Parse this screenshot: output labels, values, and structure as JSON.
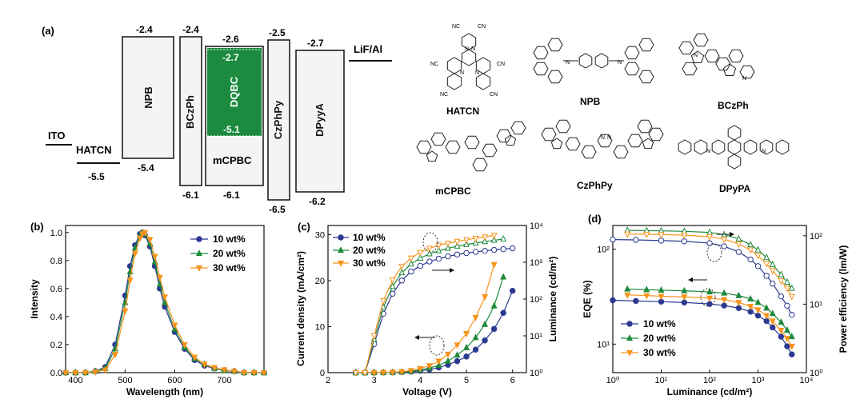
{
  "colors": {
    "blue": "#2b3990",
    "green": "#1e8a3c",
    "orange": "#f7941d",
    "band_fill": "#f4f4f4",
    "dqbc": "#1d8b3f"
  },
  "panel_a": {
    "label": "(a)",
    "layers": [
      {
        "name": "ITO",
        "lumo": "",
        "homo": "",
        "type": "line"
      },
      {
        "name": "HATCN",
        "lumo": "",
        "homo": "-5.5",
        "type": "line"
      },
      {
        "name": "NPB",
        "lumo": "-2.4",
        "homo": "-5.4",
        "type": "box"
      },
      {
        "name": "BCzPh",
        "lumo": "-2.4",
        "homo": "-6.1",
        "type": "box"
      },
      {
        "name": "mCPBC",
        "lumo": "-2.6",
        "homo": "-6.1",
        "type": "box"
      },
      {
        "name": "DQBC",
        "lumo": "-2.7",
        "homo": "-5.1",
        "type": "dopant"
      },
      {
        "name": "CzPhPy",
        "lumo": "-2.5",
        "homo": "-6.5",
        "type": "box"
      },
      {
        "name": "DPyyA",
        "lumo": "-2.7",
        "homo": "-6.2",
        "type": "box"
      },
      {
        "name": "LiF/Al",
        "lumo": "",
        "homo": "",
        "type": "line"
      }
    ],
    "structures": [
      "HATCN",
      "NPB",
      "BCzPh",
      "mCPBC",
      "CzPhPy",
      "DPyPA"
    ],
    "hatcn_atoms": [
      "NC",
      "CN",
      "N",
      "N",
      "NC",
      "CN",
      "N",
      "N",
      "NC",
      "CN"
    ]
  },
  "chart_data": [
    {
      "panel": "(b)",
      "type": "line",
      "xlabel": "Wavelength (nm)",
      "ylabel": "Intensity",
      "xlim": [
        380,
        780
      ],
      "ylim": [
        0,
        1.05
      ],
      "xticks": [
        400,
        500,
        600,
        700
      ],
      "yticks": [
        0.0,
        0.2,
        0.4,
        0.6,
        0.8,
        1.0
      ],
      "legend_position": "top-right",
      "series": [
        {
          "name": "10 wt%",
          "peak": 533,
          "color": "#2b3990",
          "marker": "circle",
          "x": [
            380,
            400,
            420,
            440,
            460,
            480,
            500,
            510,
            520,
            530,
            535,
            540,
            550,
            560,
            570,
            580,
            600,
            620,
            640,
            660,
            680,
            700,
            720,
            740,
            760,
            780
          ],
          "y": [
            0.0,
            0.0,
            0.0,
            0.01,
            0.04,
            0.2,
            0.55,
            0.76,
            0.91,
            0.99,
            1.0,
            0.98,
            0.9,
            0.76,
            0.6,
            0.47,
            0.29,
            0.17,
            0.09,
            0.05,
            0.03,
            0.015,
            0.01,
            0.0,
            0.0,
            0.0
          ]
        },
        {
          "name": "20 wt%",
          "peak": 535,
          "color": "#1e8a3c",
          "marker": "triangle-up",
          "x": [
            380,
            400,
            420,
            440,
            460,
            480,
            500,
            510,
            520,
            530,
            535,
            540,
            550,
            560,
            570,
            580,
            600,
            620,
            640,
            660,
            680,
            700,
            720,
            740,
            760,
            780
          ],
          "y": [
            0.0,
            0.0,
            0.0,
            0.01,
            0.03,
            0.17,
            0.5,
            0.72,
            0.89,
            0.98,
            1.0,
            0.99,
            0.92,
            0.79,
            0.63,
            0.5,
            0.31,
            0.18,
            0.1,
            0.06,
            0.03,
            0.015,
            0.01,
            0.0,
            0.0,
            0.0
          ]
        },
        {
          "name": "30 wt%",
          "peak": 538,
          "color": "#f7941d",
          "marker": "triangle-down",
          "x": [
            380,
            400,
            420,
            440,
            460,
            480,
            500,
            510,
            520,
            530,
            535,
            540,
            550,
            560,
            570,
            580,
            600,
            620,
            640,
            660,
            680,
            700,
            720,
            740,
            760,
            780
          ],
          "y": [
            0.0,
            0.0,
            0.0,
            0.005,
            0.02,
            0.13,
            0.44,
            0.66,
            0.85,
            0.96,
            0.99,
            1.0,
            0.95,
            0.83,
            0.68,
            0.54,
            0.34,
            0.2,
            0.11,
            0.06,
            0.035,
            0.02,
            0.01,
            0.0,
            0.0,
            0.0
          ]
        }
      ]
    },
    {
      "panel": "(c)",
      "type": "line",
      "xlabel": "Voltage (V)",
      "ylabel": "Current density (mA/cm²)",
      "y2label": "Luminance (cd/m²)",
      "xlim": [
        2,
        6.3
      ],
      "ylim": [
        0,
        32
      ],
      "y2lim_log": [
        0,
        4
      ],
      "xticks": [
        2,
        3,
        4,
        5,
        6
      ],
      "yticks": [
        0,
        10,
        20,
        30
      ],
      "y2ticks": [
        "10⁰",
        "10¹",
        "10²",
        "10³",
        "10⁴"
      ],
      "legend_position": "top-left",
      "series": [
        {
          "name": "10 wt%",
          "color": "#2b3990",
          "marker": "circle",
          "x": [
            2.6,
            2.8,
            3.0,
            3.2,
            3.4,
            3.6,
            3.8,
            4.0,
            4.2,
            4.4,
            4.6,
            4.8,
            5.0,
            5.2,
            5.4,
            5.6,
            5.8,
            6.0
          ],
          "current": [
            0,
            0,
            0,
            0.02,
            0.05,
            0.1,
            0.2,
            0.4,
            0.7,
            1.1,
            1.7,
            2.5,
            3.5,
            5,
            7,
            9.5,
            13,
            17.8
          ],
          "luminance": [
            1,
            1,
            6,
            40,
            140,
            320,
            560,
            800,
            1050,
            1250,
            1450,
            1620,
            1780,
            1920,
            2050,
            2170,
            2280,
            2400
          ]
        },
        {
          "name": "20 wt%",
          "color": "#1e8a3c",
          "marker": "triangle-up",
          "x": [
            2.6,
            2.8,
            3.0,
            3.2,
            3.4,
            3.6,
            3.8,
            4.0,
            4.2,
            4.4,
            4.6,
            4.8,
            5.0,
            5.2,
            5.4,
            5.6,
            5.8
          ],
          "current": [
            0,
            0,
            0,
            0.03,
            0.07,
            0.15,
            0.3,
            0.6,
            1.0,
            1.6,
            2.5,
            3.8,
            5.4,
            7.6,
            10.5,
            14.5,
            20.8
          ],
          "luminance": [
            1,
            1,
            8,
            60,
            220,
            520,
            900,
            1300,
            1700,
            2050,
            2400,
            2750,
            3050,
            3350,
            3650,
            3950,
            4300
          ]
        },
        {
          "name": "30 wt%",
          "color": "#f7941d",
          "marker": "triangle-down",
          "x": [
            2.6,
            2.8,
            3.0,
            3.2,
            3.4,
            3.6,
            3.8,
            4.0,
            4.2,
            4.4,
            4.6,
            4.8,
            5.0,
            5.2,
            5.4,
            5.6
          ],
          "current": [
            0,
            0,
            0,
            0.04,
            0.1,
            0.2,
            0.45,
            0.9,
            1.5,
            2.5,
            4,
            6,
            8.5,
            12,
            16.5,
            23.5
          ],
          "luminance": [
            1,
            1,
            10,
            90,
            330,
            780,
            1300,
            1850,
            2400,
            2900,
            3300,
            3700,
            4100,
            4500,
            4900,
            5400
          ]
        }
      ]
    },
    {
      "panel": "(d)",
      "type": "line",
      "xlabel": "Luminance (cd/m²)",
      "ylabel": "EQE (%)",
      "y2label": "Power efficiency (lm/W)",
      "xlim_log": [
        0,
        4
      ],
      "ylim_log": [
        0.7,
        2.25
      ],
      "y2lim_log": [
        0,
        2.15
      ],
      "xticks": [
        "10⁰",
        "10¹",
        "10²",
        "10³",
        "10⁴"
      ],
      "yticks": [
        "10¹",
        "10²"
      ],
      "y2ticks": [
        "10⁰",
        "10¹",
        "10²"
      ],
      "legend_position": "bottom-left",
      "series": [
        {
          "name": "10 wt%",
          "color": "#2b3990",
          "marker": "circle",
          "L": [
            1,
            3,
            10,
            30,
            100,
            200,
            400,
            700,
            1000,
            1500,
            2000,
            3000,
            4000,
            5000
          ],
          "eqe": [
            29,
            28.5,
            28,
            27.5,
            26.5,
            25.5,
            24,
            22,
            20,
            17.5,
            15,
            12,
            9.5,
            7.8
          ],
          "pe": [
            88,
            87,
            85,
            83,
            78,
            70,
            58,
            45,
            36,
            26,
            20,
            13,
            9.5,
            7
          ]
        },
        {
          "name": "20 wt%",
          "color": "#1e8a3c",
          "marker": "triangle-up",
          "L": [
            2,
            5,
            10,
            30,
            100,
            200,
            400,
            700,
            1000,
            1500,
            2000,
            3000,
            4000,
            5000
          ],
          "eqe": [
            38,
            37.5,
            37,
            36.5,
            35.5,
            34.5,
            32.5,
            30,
            27.5,
            24,
            21,
            17,
            14,
            12
          ],
          "pe": [
            120,
            119,
            118,
            116,
            112,
            104,
            90,
            74,
            62,
            48,
            38,
            27,
            21,
            17
          ]
        },
        {
          "name": "30 wt%",
          "color": "#f7941d",
          "marker": "triangle-down",
          "L": [
            2,
            5,
            10,
            30,
            100,
            200,
            400,
            700,
            1000,
            1500,
            2000,
            3000,
            4000,
            5000
          ],
          "eqe": [
            33,
            32.5,
            32,
            31.5,
            30.5,
            29.5,
            27.5,
            25,
            23,
            20,
            17.5,
            14,
            11.5,
            9.5
          ],
          "pe": [
            106,
            105,
            104,
            102,
            97,
            89,
            76,
            62,
            51,
            39,
            31,
            22,
            17,
            13
          ]
        }
      ]
    }
  ]
}
